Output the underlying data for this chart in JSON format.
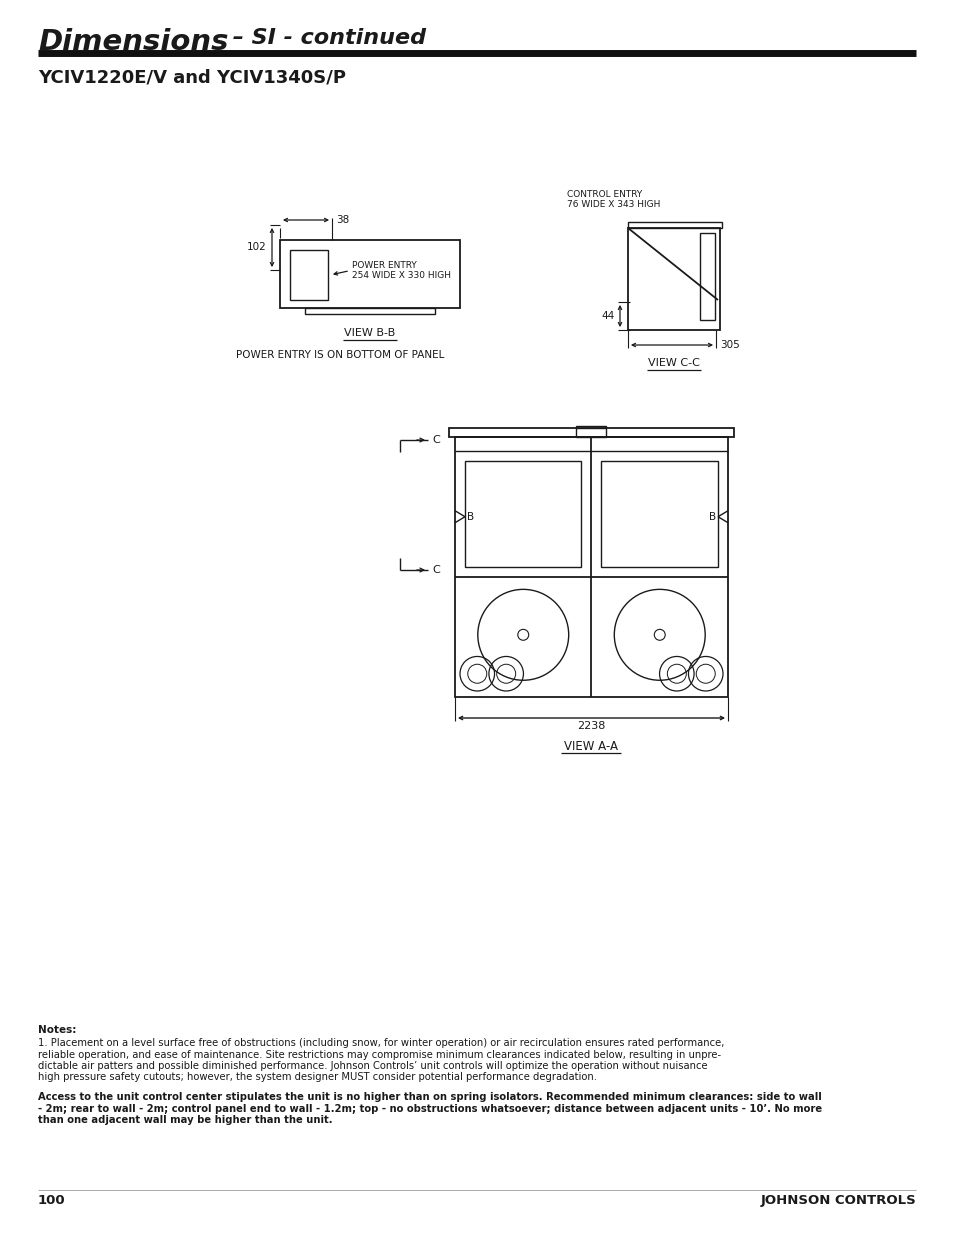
{
  "bg_color": "#ffffff",
  "text_color": "#1a1a1a",
  "title_part1": "Dimensions",
  "title_dash": " – ",
  "title_part2": "SI - continued",
  "subtitle": "YCIV1220E/V and YCIV1340S/P",
  "page_num": "100",
  "company": "JOHNSON CONTROLS",
  "notes_title": "Notes:",
  "note1_line1": "1. Placement on a level surface free of obstructions (including snow, for winter operation) or air recirculation ensures rated performance,",
  "note1_line2": "reliable operation, and ease of maintenance. Site restrictions may compromise minimum clearances indicated below, resulting in unpre-",
  "note1_line3": "dictable air patters and possible diminished performance. Johnson Controls’ unit controls will optimize the operation without nuisance",
  "note1_line4": "high pressure safety cutouts; however, the system designer MUST consider potential performance degradation.",
  "note2_line1": "Access to the unit control center stipulates the unit is no higher than on spring isolators. Recommended minimum clearances: side to wall",
  "note2_line2": "- 2m; rear to wall - 2m; control panel end to wall - 1.2m; top - no obstructions whatsoever; distance between adjacent units - 10’. No more",
  "note2_line3": "than one adjacent wall may be higher than the unit."
}
